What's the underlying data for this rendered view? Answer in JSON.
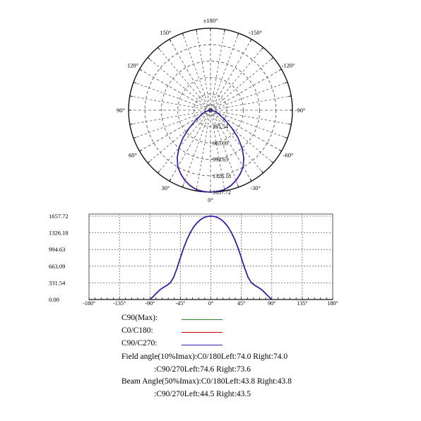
{
  "chart_data": [
    {
      "type": "polar",
      "angle_labels": [
        "±180°",
        "150°",
        "120°",
        "90°",
        "60°",
        "30°",
        "0°",
        "-30°",
        "-60°",
        "-90°",
        "-120°",
        "-150°"
      ],
      "angle_values": [
        180,
        150,
        120,
        90,
        60,
        30,
        0,
        -30,
        -60,
        -90,
        -120,
        -150
      ],
      "radial_labels": [
        "331.54",
        "663.09",
        "994.63",
        "1326.18",
        "1657.72"
      ],
      "radial_values": [
        331.54,
        663.09,
        994.63,
        1326.18,
        1657.72
      ],
      "rmax": 1657.72,
      "grid": true,
      "series": [
        {
          "name": "C0/C180",
          "color": "#cc0000",
          "points": [
            [
              0,
              1657.72
            ],
            [
              5,
              1650
            ],
            [
              10,
              1630
            ],
            [
              15,
              1580
            ],
            [
              20,
              1510
            ],
            [
              25,
              1420
            ],
            [
              30,
              1320
            ],
            [
              35,
              1170
            ],
            [
              40,
              990
            ],
            [
              45,
              780
            ],
            [
              50,
              560
            ],
            [
              55,
              380
            ],
            [
              60,
              260
            ],
            [
              65,
              190
            ],
            [
              70,
              140
            ],
            [
              75,
              90
            ],
            [
              80,
              45
            ],
            [
              85,
              15
            ],
            [
              90,
              0
            ]
          ]
        },
        {
          "name": "C90/C270",
          "color": "#2a1fae",
          "points": [
            [
              0,
              1657.72
            ],
            [
              5,
              1652
            ],
            [
              10,
              1632
            ],
            [
              15,
              1585
            ],
            [
              20,
              1515
            ],
            [
              25,
              1425
            ],
            [
              30,
              1325
            ],
            [
              35,
              1175
            ],
            [
              40,
              995
            ],
            [
              45,
              785
            ],
            [
              50,
              565
            ],
            [
              55,
              385
            ],
            [
              60,
              262
            ],
            [
              65,
              192
            ],
            [
              70,
              142
            ],
            [
              75,
              92
            ],
            [
              80,
              47
            ],
            [
              85,
              16
            ],
            [
              90,
              0
            ]
          ]
        }
      ]
    },
    {
      "type": "line",
      "x_ticks": [
        "-180°",
        "-135°",
        "-90°",
        "-45°",
        "0°",
        "45°",
        "90°",
        "135°",
        "180°"
      ],
      "x_tick_values": [
        -180,
        -135,
        -90,
        -45,
        0,
        45,
        90,
        135,
        180
      ],
      "y_ticks": [
        "0.00",
        "331.54",
        "663.09",
        "994.63",
        "1326.18",
        "1657.72"
      ],
      "y_tick_values": [
        0,
        331.54,
        663.09,
        994.63,
        1326.18,
        1657.72
      ],
      "xlim": [
        -180,
        180
      ],
      "ylim": [
        0,
        1657.72
      ],
      "grid": true,
      "series": [
        {
          "name": "C0/C180",
          "color": "#cc0000",
          "points": [
            [
              -90,
              0
            ],
            [
              -85,
              60
            ],
            [
              -80,
              130
            ],
            [
              -75,
              195
            ],
            [
              -70,
              240
            ],
            [
              -65,
              280
            ],
            [
              -60,
              330
            ],
            [
              -55,
              440
            ],
            [
              -50,
              620
            ],
            [
              -45,
              830
            ],
            [
              -40,
              1030
            ],
            [
              -35,
              1200
            ],
            [
              -30,
              1340
            ],
            [
              -25,
              1450
            ],
            [
              -20,
              1530
            ],
            [
              -15,
              1590
            ],
            [
              -10,
              1630
            ],
            [
              -5,
              1652
            ],
            [
              0,
              1657.72
            ],
            [
              5,
              1652
            ],
            [
              10,
              1630
            ],
            [
              15,
              1590
            ],
            [
              20,
              1530
            ],
            [
              25,
              1450
            ],
            [
              30,
              1340
            ],
            [
              35,
              1200
            ],
            [
              40,
              1030
            ],
            [
              45,
              830
            ],
            [
              50,
              620
            ],
            [
              55,
              440
            ],
            [
              60,
              330
            ],
            [
              65,
              280
            ],
            [
              70,
              240
            ],
            [
              75,
              195
            ],
            [
              80,
              130
            ],
            [
              85,
              60
            ],
            [
              90,
              0
            ]
          ]
        },
        {
          "name": "C90/C270",
          "color": "#2a1fae",
          "points": [
            [
              -90,
              0
            ],
            [
              -85,
              62
            ],
            [
              -80,
              132
            ],
            [
              -75,
              197
            ],
            [
              -70,
              242
            ],
            [
              -65,
              282
            ],
            [
              -60,
              332
            ],
            [
              -55,
              442
            ],
            [
              -50,
              622
            ],
            [
              -45,
              832
            ],
            [
              -40,
              1032
            ],
            [
              -35,
              1202
            ],
            [
              -30,
              1342
            ],
            [
              -25,
              1452
            ],
            [
              -20,
              1532
            ],
            [
              -15,
              1592
            ],
            [
              -10,
              1632
            ],
            [
              -5,
              1653
            ],
            [
              0,
              1657.72
            ],
            [
              5,
              1653
            ],
            [
              10,
              1632
            ],
            [
              15,
              1592
            ],
            [
              20,
              1532
            ],
            [
              25,
              1452
            ],
            [
              30,
              1342
            ],
            [
              35,
              1202
            ],
            [
              40,
              1032
            ],
            [
              45,
              832
            ],
            [
              50,
              622
            ],
            [
              55,
              442
            ],
            [
              60,
              332
            ],
            [
              65,
              282
            ],
            [
              70,
              242
            ],
            [
              75,
              197
            ],
            [
              80,
              132
            ],
            [
              85,
              62
            ],
            [
              90,
              0
            ]
          ]
        }
      ]
    }
  ],
  "legend": [
    {
      "label": "C90(Max):",
      "color": "#2e7d32"
    },
    {
      "label": "C0/C180:",
      "color": "#cc0000"
    },
    {
      "label": "C90/C270:",
      "color": "#2a1fae"
    }
  ],
  "info": {
    "field_line1": "Field angle(10%Imax):C0/180Left:74.0 Right:74.0",
    "field_line2": ":C90/270Left:74.6 Right:73.6",
    "beam_line1": "Beam Angle(50%Imax):C0/180Left:43.8 Right:43.8",
    "beam_line2": ":C90/270Left:44.5 Right:43.5"
  }
}
